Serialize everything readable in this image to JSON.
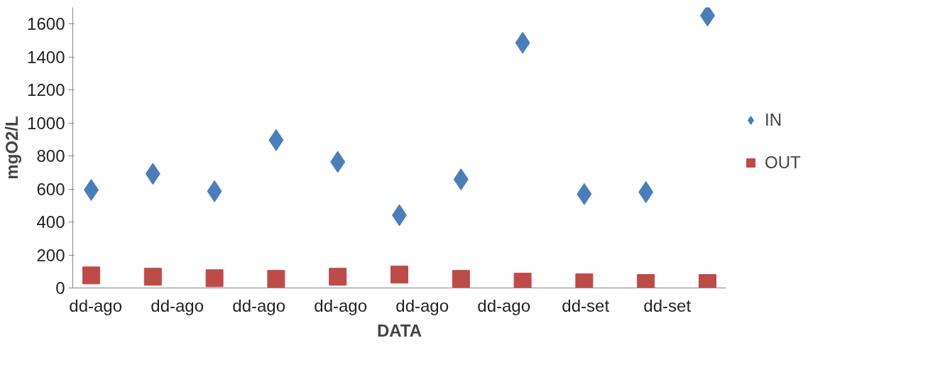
{
  "chart_data": {
    "type": "scatter",
    "xlabel": "DATA",
    "ylabel": "mgO2/L",
    "ylim": [
      0,
      1700
    ],
    "yticks": [
      0,
      200,
      400,
      600,
      800,
      1000,
      1200,
      1400,
      1600
    ],
    "categories": [
      null,
      null,
      null,
      null,
      null,
      null,
      null,
      null,
      null,
      null,
      null
    ],
    "annotations": [
      "dd-ago",
      "dd-ago",
      "dd-ago",
      "dd-ago",
      "dd-ago",
      "dd-ago",
      "dd-set",
      "dd-set"
    ],
    "series": [
      {
        "name": "IN",
        "color": "#4a7ebb",
        "marker": "diamond",
        "values": [
          594,
          692,
          586,
          896,
          764,
          441,
          658,
          1486,
          569,
          581,
          1651
        ]
      },
      {
        "name": "OUT",
        "color": "#be4b48",
        "marker": "square",
        "values": [
          76,
          68,
          59,
          55,
          68,
          81,
          55,
          38,
          34,
          30,
          30
        ]
      }
    ],
    "grid": false,
    "legend": "right"
  }
}
